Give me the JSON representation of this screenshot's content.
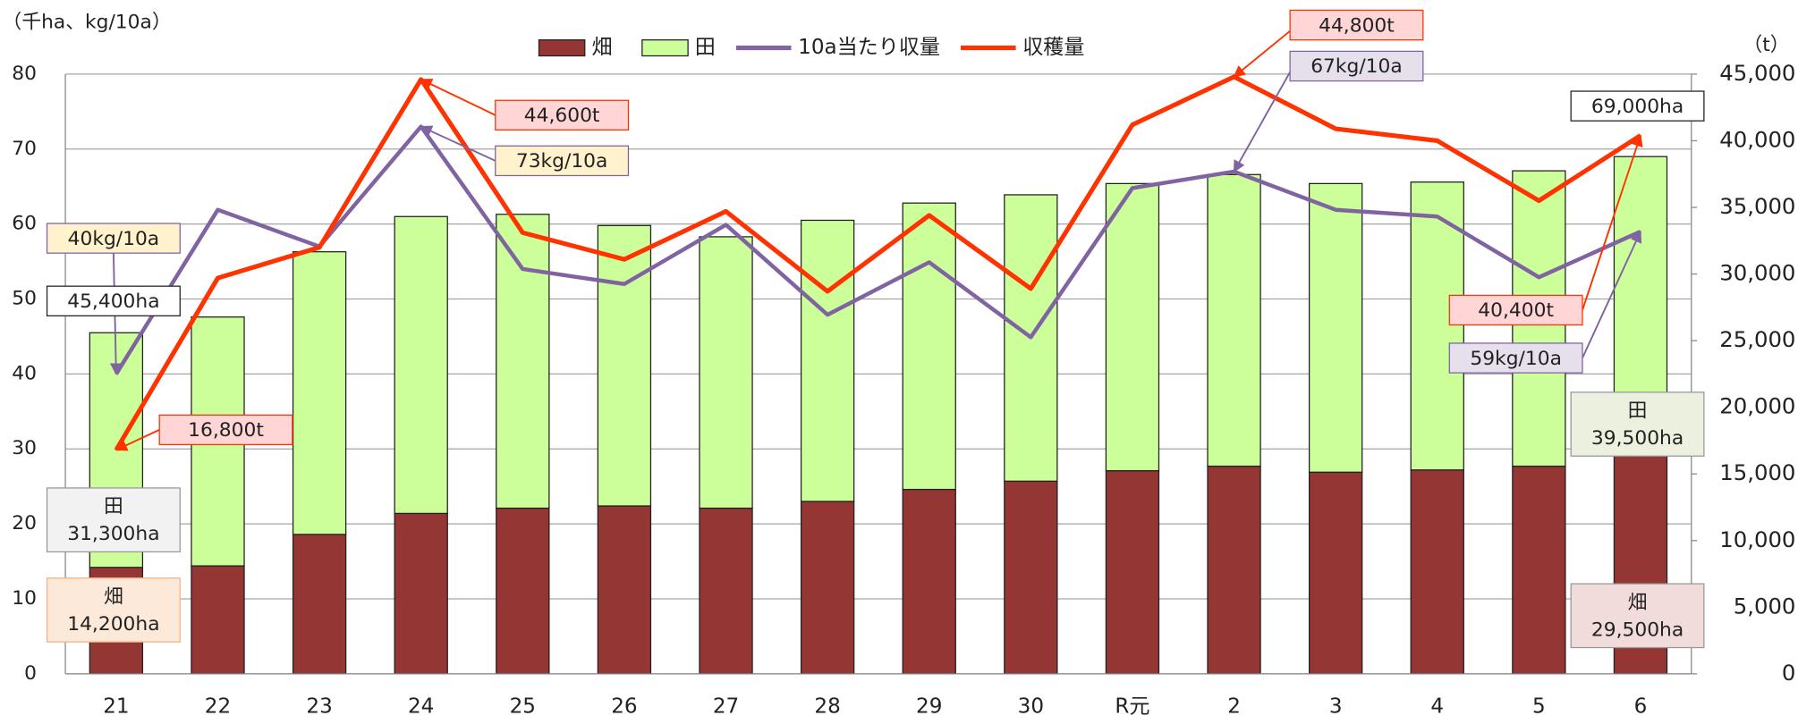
{
  "chart_data": {
    "type": "bar",
    "y_label": "（千ha、kg/10a）",
    "y2_label": "（t）",
    "categories": [
      "21",
      "22",
      "23",
      "24",
      "25",
      "26",
      "27",
      "28",
      "29",
      "30",
      "R元",
      "2",
      "3",
      "4",
      "5",
      "6"
    ],
    "series": [
      {
        "name": "畑",
        "type": "bar",
        "color": "#943634",
        "values": [
          14.2,
          14.4,
          18.6,
          21.4,
          22.1,
          22.4,
          22.1,
          23.0,
          24.6,
          25.7,
          27.1,
          27.7,
          26.9,
          27.2,
          27.7,
          29.5
        ]
      },
      {
        "name": "田",
        "type": "bar",
        "color": "#ccff99",
        "values": [
          31.3,
          33.2,
          37.7,
          39.6,
          39.2,
          37.4,
          36.2,
          37.5,
          38.2,
          38.2,
          38.3,
          38.9,
          38.5,
          38.4,
          39.4,
          39.5
        ]
      },
      {
        "name": "10a当たり収量",
        "type": "line",
        "color": "#8064a2",
        "values": [
          40,
          61.9,
          57.0,
          73,
          54.0,
          52.0,
          59.9,
          47.9,
          54.9,
          44.9,
          64.8,
          67,
          61.9,
          61.0,
          52.9,
          59
        ]
      },
      {
        "name": "収穫量",
        "type": "line",
        "axis": "y2",
        "color": "#ff3300",
        "values": [
          16800,
          29700,
          32000,
          44600,
          33100,
          31100,
          34700,
          28700,
          34400,
          28900,
          41200,
          44800,
          40900,
          40000,
          35500,
          40400
        ]
      }
    ],
    "ylim": [
      0,
      80
    ],
    "yticks": [
      0,
      10,
      20,
      30,
      40,
      50,
      60,
      70,
      80
    ],
    "y2lim": [
      0,
      45000
    ],
    "y2ticks": [
      0,
      {
        "value": 5000,
        "label": "5,000"
      },
      {
        "value": 10000,
        "label": "10,000"
      },
      {
        "value": 15000,
        "label": "15,000"
      },
      {
        "value": 20000,
        "label": "20,000"
      },
      {
        "value": 25000,
        "label": "25,000"
      },
      {
        "value": 30000,
        "label": "30,000"
      },
      {
        "value": 35000,
        "label": "35,000"
      },
      {
        "value": 40000,
        "label": "40,000"
      },
      {
        "value": 45000,
        "label": "45,000"
      }
    ],
    "grid": true,
    "legend": "top",
    "annotations": [
      "40kg/10a",
      "45,400ha",
      "16,800t",
      "44,600t",
      "73kg/10a",
      "44,800t",
      "67kg/10a",
      "69,000ha",
      "40,400t",
      "59kg/10a"
    ],
    "area_labels": [
      {
        "name": "田",
        "value": "31,300ha"
      },
      {
        "name": "畑",
        "value": "14,200ha"
      },
      {
        "name": "田",
        "value": "39,500ha"
      },
      {
        "name": "畑",
        "value": "29,500ha"
      }
    ]
  }
}
